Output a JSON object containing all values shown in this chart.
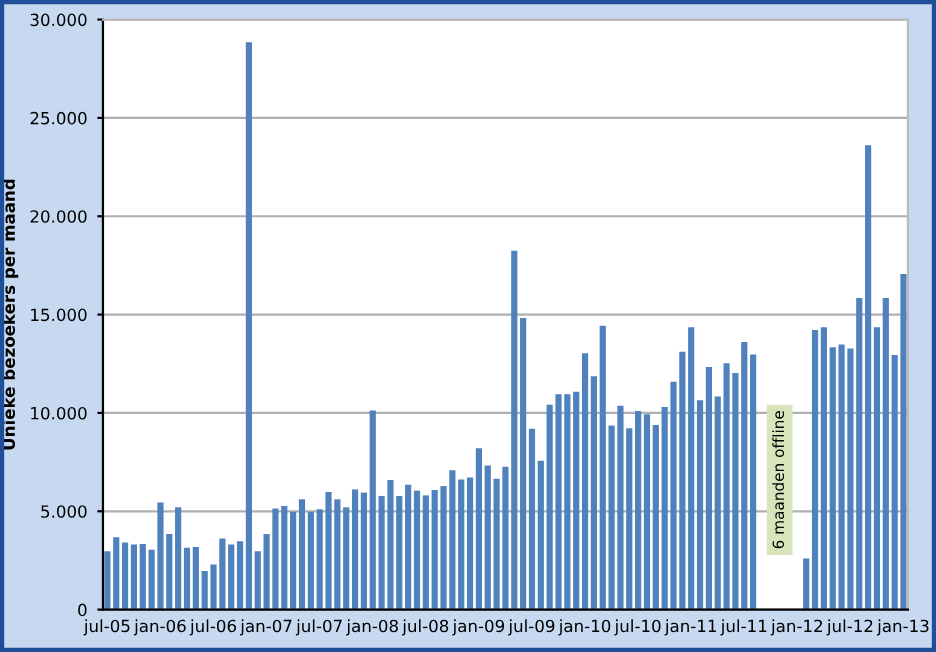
{
  "chart_data": {
    "type": "bar",
    "ylabel": "Unieke bezoekers per maand",
    "categories": [
      "jul-05",
      null,
      null,
      null,
      null,
      null,
      "jan-06",
      null,
      null,
      null,
      null,
      null,
      "jul-06",
      null,
      null,
      null,
      null,
      null,
      "jan-07",
      null,
      null,
      null,
      null,
      null,
      "jul-07",
      null,
      null,
      null,
      null,
      null,
      "jan-08",
      null,
      null,
      null,
      null,
      null,
      "jul-08",
      null,
      null,
      null,
      null,
      null,
      "jan-09",
      null,
      null,
      null,
      null,
      null,
      "jul-09",
      null,
      null,
      null,
      null,
      null,
      "jan-10",
      null,
      null,
      null,
      null,
      null,
      "jul-10",
      null,
      null,
      null,
      null,
      null,
      "jan-11",
      null,
      null,
      null,
      null,
      null,
      "jul-11",
      null,
      null,
      null,
      null,
      null,
      "jan-12",
      null,
      null,
      null,
      null,
      null,
      "jul-12",
      null,
      null,
      null,
      null,
      null,
      "jan-13"
    ],
    "values": [
      2970,
      3680,
      3410,
      3310,
      3340,
      3040,
      5440,
      3850,
      5200,
      3140,
      3180,
      1960,
      2300,
      3610,
      3310,
      3480,
      28850,
      2970,
      3850,
      5140,
      5270,
      4970,
      5610,
      4970,
      5100,
      5980,
      5610,
      5200,
      6110,
      5950,
      10130,
      5780,
      6590,
      5780,
      6350,
      6050,
      5810,
      6080,
      6280,
      7080,
      6620,
      6720,
      8210,
      7330,
      6660,
      7260,
      18240,
      14830,
      9190,
      7570,
      10410,
      10950,
      10950,
      11080,
      13040,
      11860,
      14430,
      9360,
      10370,
      9220,
      10100,
      9930,
      9390,
      10300,
      11590,
      13110,
      14360,
      10640,
      12330,
      10840,
      12530,
      12030,
      13610,
      12970,
      null,
      null,
      null,
      null,
      null,
      2600,
      14220,
      14360,
      13340,
      13480,
      13280,
      15840,
      23610,
      14360,
      15840,
      12940,
      17060
    ],
    "color": "#4f81bd",
    "ylim": [
      0,
      30000
    ],
    "yticks": [
      {
        "value": 0,
        "label": "0"
      },
      {
        "value": 5000,
        "label": "5.000"
      },
      {
        "value": 10000,
        "label": "10.000"
      },
      {
        "value": 15000,
        "label": "15.000"
      },
      {
        "value": 20000,
        "label": "20.000"
      },
      {
        "value": 25000,
        "label": "25.000"
      },
      {
        "value": 30000,
        "label": "30.000"
      }
    ],
    "grid": "y",
    "annotations": [
      "6 maanden offline"
    ]
  }
}
